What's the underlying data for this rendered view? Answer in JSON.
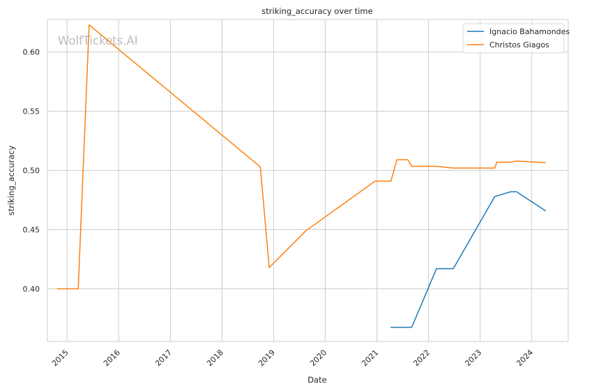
{
  "chart_data": {
    "type": "line",
    "title": "striking_accuracy over time",
    "xlabel": "Date",
    "ylabel": "striking_accuracy",
    "watermark": "WolfTickets.AI",
    "x_ticks": [
      "2015",
      "2016",
      "2017",
      "2018",
      "2019",
      "2020",
      "2021",
      "2022",
      "2023",
      "2024"
    ],
    "y_ticks": [
      "0.40",
      "0.45",
      "0.50",
      "0.55",
      "0.60"
    ],
    "xlim": [
      "2014-08-15",
      "2024-09-15"
    ],
    "ylim": [
      0.3555,
      0.6275
    ],
    "grid": true,
    "legend_position": "top-right",
    "series": [
      {
        "name": "Ignacio Bahamondes",
        "color": "#1f77b4",
        "points": [
          [
            "2021-04-10",
            0.3675
          ],
          [
            "2021-09-04",
            0.3675
          ],
          [
            "2022-02-26",
            0.417
          ],
          [
            "2022-06-25",
            0.417
          ],
          [
            "2023-04-15",
            0.478
          ],
          [
            "2023-08-05",
            0.482
          ],
          [
            "2023-09-16",
            0.482
          ],
          [
            "2024-04-06",
            0.466
          ]
        ]
      },
      {
        "name": "Christos Giagos",
        "color": "#ff7f0e",
        "points": [
          [
            "2014-10-25",
            0.4
          ],
          [
            "2015-03-21",
            0.4
          ],
          [
            "2015-06-06",
            0.623
          ],
          [
            "2018-09-29",
            0.503
          ],
          [
            "2018-12-01",
            0.418
          ],
          [
            "2019-08-17",
            0.449
          ],
          [
            "2020-12-19",
            0.491
          ],
          [
            "2021-04-10",
            0.491
          ],
          [
            "2021-05-22",
            0.509
          ],
          [
            "2021-08-07",
            0.509
          ],
          [
            "2021-09-04",
            0.5035
          ],
          [
            "2022-02-26",
            0.5035
          ],
          [
            "2022-06-25",
            0.502
          ],
          [
            "2023-04-15",
            0.502
          ],
          [
            "2023-04-29",
            0.507
          ],
          [
            "2023-08-05",
            0.507
          ],
          [
            "2023-09-16",
            0.508
          ],
          [
            "2024-04-06",
            0.5065
          ]
        ]
      }
    ]
  }
}
